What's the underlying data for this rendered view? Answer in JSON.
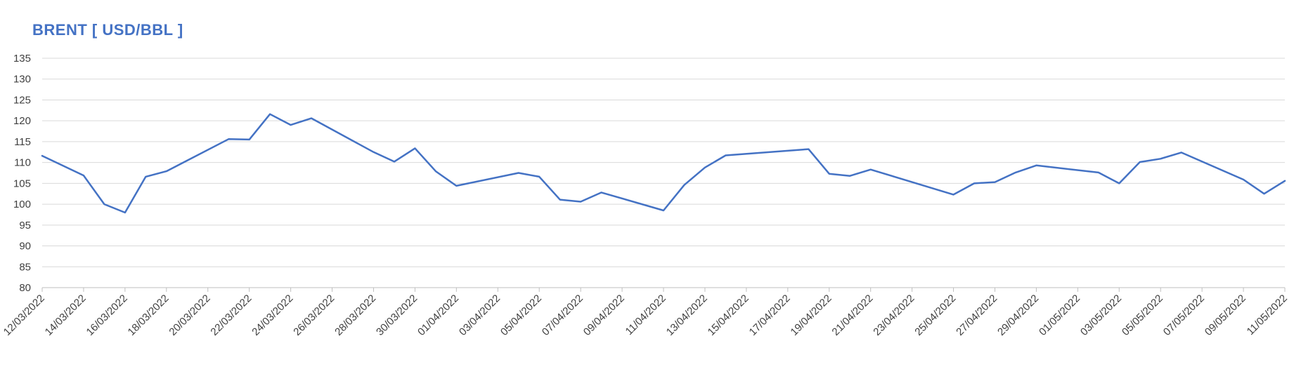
{
  "chart_data": {
    "type": "line",
    "title": "BRENT [ USD/BBL ]",
    "xlabel": "",
    "ylabel": "",
    "ylim": [
      80,
      135
    ],
    "ytick_step": 5,
    "grid": true,
    "x_tick_labels": [
      "12/03/2022",
      "14/03/2022",
      "16/03/2022",
      "18/03/2022",
      "20/03/2022",
      "22/03/2022",
      "24/03/2022",
      "26/03/2022",
      "28/03/2022",
      "30/03/2022",
      "01/04/2022",
      "03/04/2022",
      "05/04/2022",
      "07/04/2022",
      "09/04/2022",
      "11/04/2022",
      "13/04/2022",
      "15/04/2022",
      "17/04/2022",
      "19/04/2022",
      "21/04/2022",
      "23/04/2022",
      "25/04/2022",
      "27/04/2022",
      "29/04/2022",
      "01/05/2022",
      "03/05/2022",
      "05/05/2022",
      "07/05/2022",
      "09/05/2022",
      "11/05/2022"
    ],
    "series": [
      {
        "color": "#4472C4",
        "points": [
          {
            "x": "12/03/2022",
            "y": 111.6
          },
          {
            "x": "14/03/2022",
            "y": 106.9
          },
          {
            "x": "15/03/2022",
            "y": 100.0
          },
          {
            "x": "16/03/2022",
            "y": 98.0
          },
          {
            "x": "17/03/2022",
            "y": 106.6
          },
          {
            "x": "18/03/2022",
            "y": 107.9
          },
          {
            "x": "21/03/2022",
            "y": 115.6
          },
          {
            "x": "22/03/2022",
            "y": 115.5
          },
          {
            "x": "23/03/2022",
            "y": 121.6
          },
          {
            "x": "24/03/2022",
            "y": 119.0
          },
          {
            "x": "25/03/2022",
            "y": 120.6
          },
          {
            "x": "28/03/2022",
            "y": 112.5
          },
          {
            "x": "29/03/2022",
            "y": 110.2
          },
          {
            "x": "30/03/2022",
            "y": 113.4
          },
          {
            "x": "31/03/2022",
            "y": 107.9
          },
          {
            "x": "01/04/2022",
            "y": 104.4
          },
          {
            "x": "04/04/2022",
            "y": 107.5
          },
          {
            "x": "05/04/2022",
            "y": 106.6
          },
          {
            "x": "06/04/2022",
            "y": 101.1
          },
          {
            "x": "07/04/2022",
            "y": 100.6
          },
          {
            "x": "08/04/2022",
            "y": 102.8
          },
          {
            "x": "11/04/2022",
            "y": 98.5
          },
          {
            "x": "12/04/2022",
            "y": 104.6
          },
          {
            "x": "13/04/2022",
            "y": 108.8
          },
          {
            "x": "14/04/2022",
            "y": 111.7
          },
          {
            "x": "18/04/2022",
            "y": 113.2
          },
          {
            "x": "19/04/2022",
            "y": 107.3
          },
          {
            "x": "20/04/2022",
            "y": 106.8
          },
          {
            "x": "21/04/2022",
            "y": 108.3
          },
          {
            "x": "25/04/2022",
            "y": 102.3
          },
          {
            "x": "26/04/2022",
            "y": 105.0
          },
          {
            "x": "27/04/2022",
            "y": 105.3
          },
          {
            "x": "28/04/2022",
            "y": 107.6
          },
          {
            "x": "29/04/2022",
            "y": 109.3
          },
          {
            "x": "02/05/2022",
            "y": 107.6
          },
          {
            "x": "03/05/2022",
            "y": 105.0
          },
          {
            "x": "04/05/2022",
            "y": 110.1
          },
          {
            "x": "05/05/2022",
            "y": 110.9
          },
          {
            "x": "06/05/2022",
            "y": 112.4
          },
          {
            "x": "09/05/2022",
            "y": 105.9
          },
          {
            "x": "10/05/2022",
            "y": 102.5
          },
          {
            "x": "11/05/2022",
            "y": 105.6
          }
        ]
      }
    ]
  }
}
